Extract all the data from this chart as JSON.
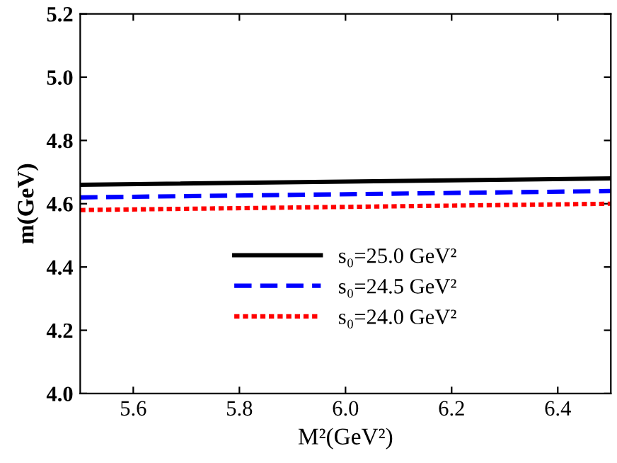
{
  "chart_data": {
    "type": "line",
    "xlabel": "M²(GeV²)",
    "ylabel": "m(GeV)",
    "x": [
      5.5,
      6.5
    ],
    "series": [
      {
        "name": "s₀=25.0 GeV²",
        "color": "#000000",
        "values": [
          4.66,
          4.68
        ],
        "line_style": "solid"
      },
      {
        "name": "s₀=24.5 GeV²",
        "color": "#0000ff",
        "values": [
          4.62,
          4.64
        ],
        "line_style": "dashed"
      },
      {
        "name": "s₀=24.0 GeV²",
        "color": "#ff0000",
        "values": [
          4.58,
          4.6
        ],
        "line_style": "dotted"
      }
    ],
    "xlim": [
      5.5,
      6.5
    ],
    "ylim": [
      4.0,
      5.2
    ],
    "xticks": [
      5.6,
      5.8,
      {
        "value": 6,
        "label": "6.0"
      },
      6.2,
      6.4
    ],
    "yticks": [
      {
        "value": 4,
        "label": "4.0"
      },
      4.2,
      4.4,
      4.6,
      4.8,
      {
        "value": 5,
        "label": "5.0"
      },
      5.2
    ],
    "legend": "bottom",
    "grid": false
  }
}
